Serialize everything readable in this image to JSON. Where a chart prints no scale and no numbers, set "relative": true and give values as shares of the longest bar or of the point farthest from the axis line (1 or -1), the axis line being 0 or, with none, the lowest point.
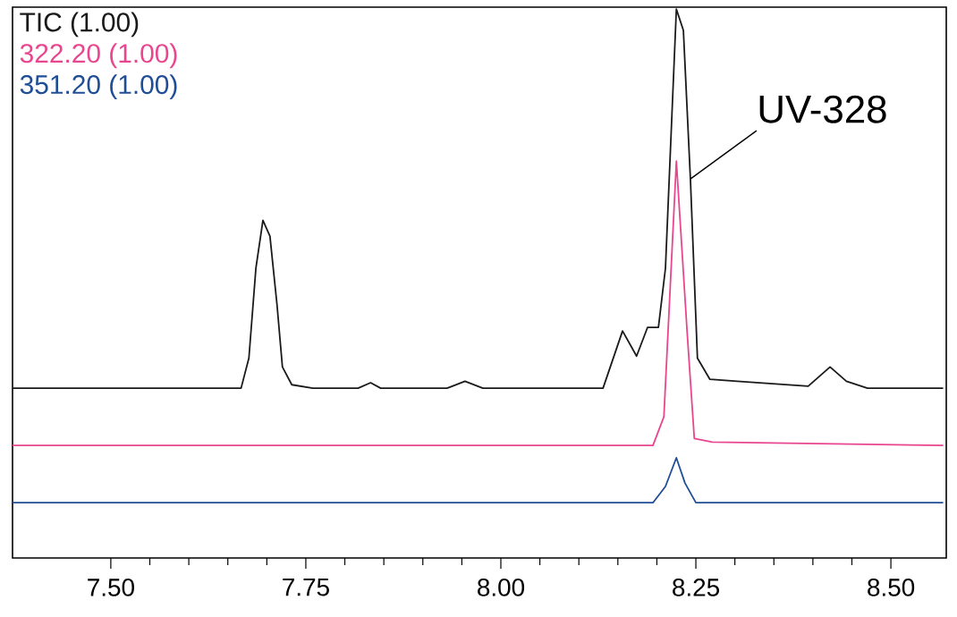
{
  "chart_data": {
    "type": "line",
    "relative": true,
    "legend": "top left",
    "marker": "none",
    "line_style": "solid",
    "xlim": [
      7.374,
      8.571
    ],
    "xticks": [
      {
        "value": 7.5,
        "label": "7.50"
      },
      {
        "value": 7.75,
        "label": "7.75"
      },
      {
        "value": 8.0,
        "label": "8.00"
      },
      {
        "value": 8.25,
        "label": "8.25"
      },
      {
        "value": 8.5,
        "label": "8.50"
      }
    ],
    "tick_labels": "x",
    "annotations": [
      {
        "text": "UV-328",
        "x": 8.243,
        "y": 0.656
      }
    ],
    "series": [
      {
        "name": "TIC (1.00)",
        "color": "#1a1a1a",
        "x": [
          7.374,
          7.553,
          7.667,
          7.677,
          7.686,
          7.695,
          7.704,
          7.713,
          7.72,
          7.732,
          7.759,
          7.817,
          7.833,
          7.846,
          7.931,
          7.954,
          7.977,
          8.131,
          8.156,
          8.174,
          8.188,
          8.202,
          8.211,
          8.225,
          8.234,
          8.243,
          8.252,
          8.268,
          8.303,
          8.394,
          8.422,
          8.443,
          8.47,
          8.567
        ],
        "values": [
          0.232,
          0.232,
          0.232,
          0.293,
          0.475,
          0.572,
          0.54,
          0.402,
          0.275,
          0.239,
          0.232,
          0.232,
          0.243,
          0.232,
          0.232,
          0.246,
          0.232,
          0.232,
          0.348,
          0.297,
          0.355,
          0.355,
          0.475,
          1,
          0.957,
          0.656,
          0.293,
          0.25,
          0.246,
          0.236,
          0.275,
          0.246,
          0.232,
          0.232
        ]
      },
      {
        "name": "322.20 (1.00)",
        "color": "#e8468f",
        "x": [
          7.374,
          8.195,
          8.209,
          8.225,
          8.239,
          8.248,
          8.271,
          8.567
        ],
        "values": [
          0.116,
          0.116,
          0.174,
          0.692,
          0.341,
          0.13,
          0.123,
          0.116
        ]
      },
      {
        "name": "351.20 (1.00)",
        "color": "#1f4e96",
        "x": [
          7.374,
          8.195,
          8.211,
          8.225,
          8.236,
          8.25,
          8.567
        ],
        "values": [
          0,
          0,
          0.033,
          0.091,
          0.04,
          0,
          0
        ]
      }
    ]
  }
}
